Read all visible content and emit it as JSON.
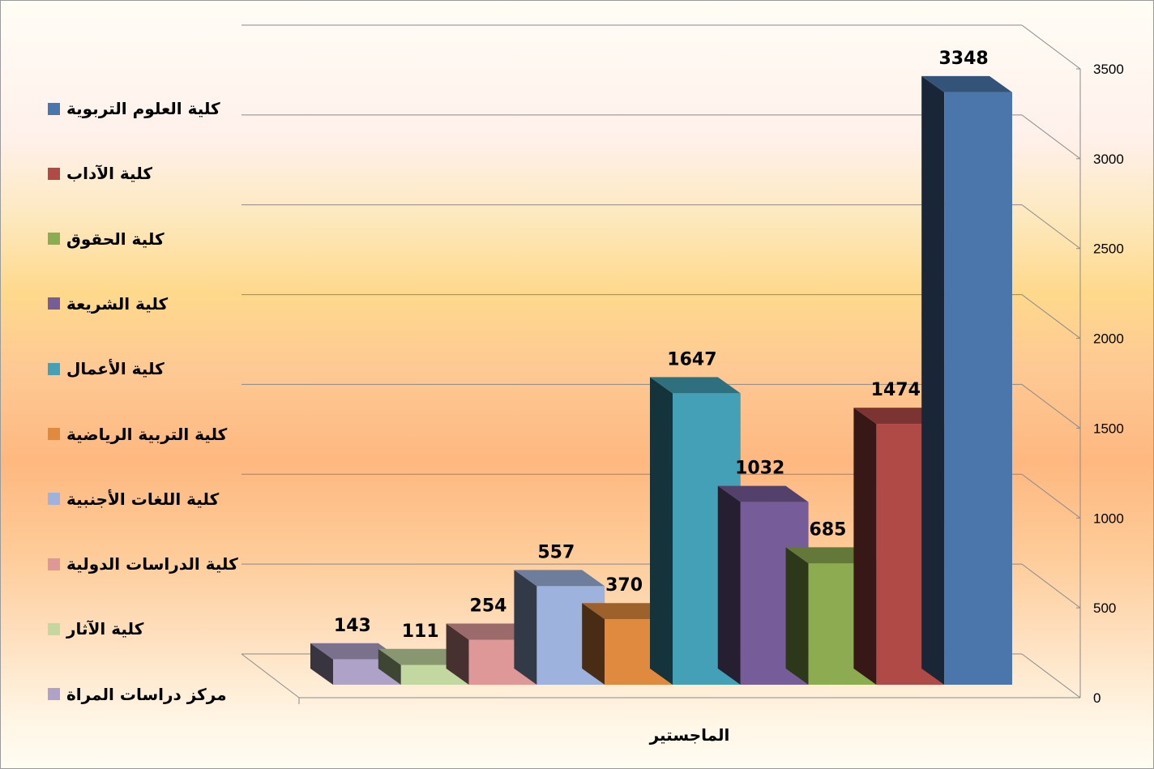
{
  "chart_data": {
    "type": "bar",
    "categories": [
      "الماجستير"
    ],
    "ylim": [
      0,
      3500
    ],
    "yticks": [
      0,
      500,
      1000,
      1500,
      2000,
      2500,
      3000,
      3500
    ],
    "grid": true,
    "legend_position": "left",
    "series": [
      {
        "name": "كلية العلوم التربوية",
        "values": [
          3348
        ],
        "color": "#4a76ab"
      },
      {
        "name": "كلية الآداب",
        "values": [
          1474
        ],
        "color": "#b04a46"
      },
      {
        "name": "كلية الحقوق",
        "values": [
          685
        ],
        "color": "#8dab51"
      },
      {
        "name": "كلية الشريعة",
        "values": [
          1032
        ],
        "color": "#765d99"
      },
      {
        "name": "كلية الأعمال",
        "values": [
          1647
        ],
        "color": "#43a0b6"
      },
      {
        "name": "كلية التربية الرياضية",
        "values": [
          370
        ],
        "color": "#e08a3f"
      },
      {
        "name": "كلية اللغات الأجنبية",
        "values": [
          557
        ],
        "color": "#9db3dd"
      },
      {
        "name": "كلية الدراسات الدولية",
        "values": [
          254
        ],
        "color": "#dd9897"
      },
      {
        "name": "كلية الآثار",
        "values": [
          111
        ],
        "color": "#c2d8a0"
      },
      {
        "name": "مركز دراسات المراة",
        "values": [
          143
        ],
        "color": "#aea2c8"
      }
    ]
  }
}
